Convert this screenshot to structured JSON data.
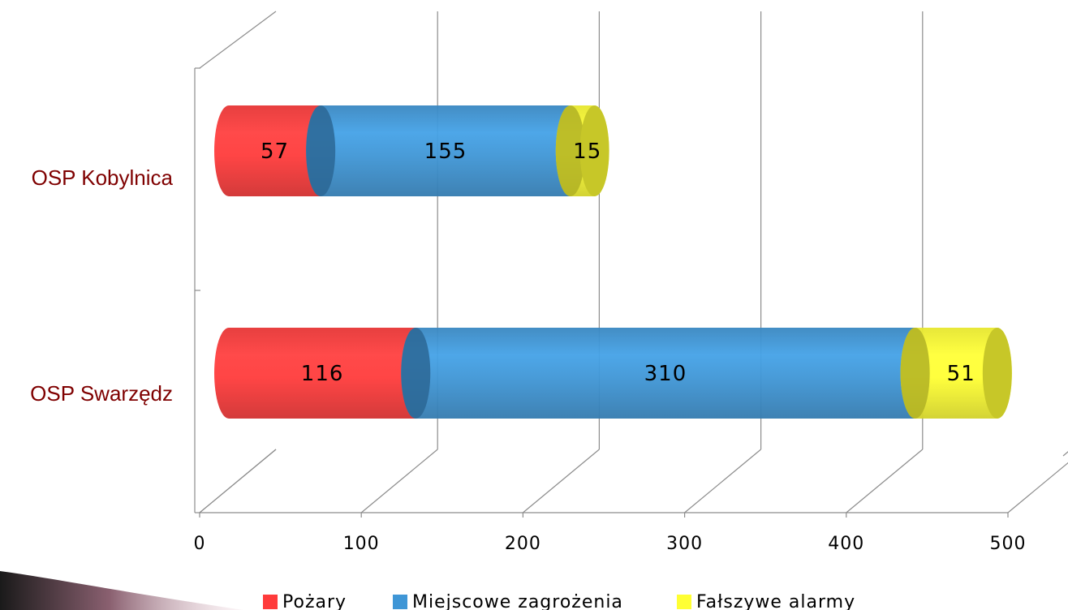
{
  "chart_data": {
    "type": "bar",
    "orientation": "horizontal",
    "stacked": true,
    "style": "3d-cylinder",
    "categories": [
      "OSP Swarzędz",
      "OSP Kobylnica"
    ],
    "series": [
      {
        "name": "Pożary",
        "values": [
          116,
          57
        ],
        "color": "#ff3b3b"
      },
      {
        "name": "Miejscowe zagrożenia",
        "values": [
          310,
          155
        ],
        "color": "#3f96d6"
      },
      {
        "name": "Fałszywe alarmy",
        "values": [
          51,
          15
        ],
        "color": "#ffff33"
      }
    ],
    "xlim": [
      0,
      500
    ],
    "x_ticks": [
      "0",
      "100",
      "200",
      "300",
      "400",
      "500"
    ],
    "title": "",
    "xlabel": "",
    "ylabel": "",
    "grid": true,
    "legend_position": "bottom"
  }
}
